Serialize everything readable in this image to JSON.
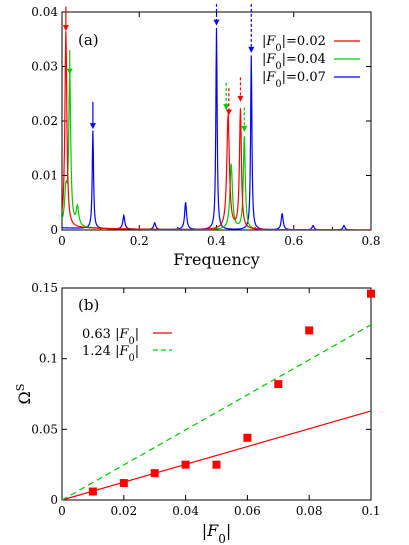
{
  "chart_data": [
    {
      "type": "line",
      "panel_label": "(a)",
      "title": "",
      "xlabel": "Frequency",
      "ylabel": "",
      "xlim": [
        0,
        0.8
      ],
      "ylim": [
        0,
        0.04
      ],
      "xticks": [
        "0",
        "0.2",
        "0.4",
        "0.6",
        "0.8"
      ],
      "yticks": [
        "0",
        "0.01",
        "0.02",
        "0.03",
        "0.04"
      ],
      "grid": false,
      "legend_position": "top-right",
      "legend": [
        {
          "prefix": "|",
          "var": "F",
          "sub": "0",
          "suffix": "|=0.02"
        },
        {
          "prefix": "|",
          "var": "F",
          "sub": "0",
          "suffix": "|=0.04"
        },
        {
          "prefix": "|",
          "var": "F",
          "sub": "0",
          "suffix": "|=0.07"
        }
      ],
      "series": [
        {
          "color": "#ff0000",
          "peaks": [
            [
              0.01,
              0.036,
              0.003
            ],
            [
              0.43,
              0.021,
              0.004
            ],
            [
              0.462,
              0.022,
              0.003
            ]
          ],
          "baseline": 0.0005
        },
        {
          "color": "#00cc00",
          "peaks": [
            [
              0.02,
              0.028,
              0.003
            ],
            [
              0.04,
              0.0035,
              0.004
            ],
            [
              0.438,
              0.012,
              0.004
            ],
            [
              0.472,
              0.017,
              0.003
            ],
            [
              0.01,
              0.006,
              0.004
            ]
          ],
          "baseline": 0.0005
        },
        {
          "color": "#0000ff",
          "peaks": [
            [
              0.08,
              0.018,
              0.002
            ],
            [
              0.16,
              0.0025,
              0.003
            ],
            [
              0.24,
              0.0012,
              0.003
            ],
            [
              0.32,
              0.005,
              0.003
            ],
            [
              0.4,
              0.037,
              0.002
            ],
            [
              0.49,
              0.032,
              0.002
            ],
            [
              0.57,
              0.003,
              0.003
            ],
            [
              0.65,
              0.0008,
              0.003
            ],
            [
              0.73,
              0.0008,
              0.003
            ]
          ],
          "baseline": 0.0004
        }
      ],
      "arrows": [
        {
          "x": 0.01,
          "y_top": 0.041,
          "y_tip": 0.0365,
          "color": "#ff0000",
          "dashed": false
        },
        {
          "x": 0.02,
          "y_top": 0.033,
          "y_tip": 0.0285,
          "color": "#00cc00",
          "dashed": false
        },
        {
          "x": 0.08,
          "y_top": 0.0235,
          "y_tip": 0.0185,
          "color": "#0000ff",
          "dashed": false
        },
        {
          "x": 0.4,
          "y_top": 0.0415,
          "y_tip": 0.0375,
          "color": "#0000ff",
          "dashed": true
        },
        {
          "x": 0.425,
          "y_top": 0.027,
          "y_tip": 0.022,
          "color": "#00cc00",
          "dashed": true
        },
        {
          "x": 0.432,
          "y_top": 0.026,
          "y_tip": 0.021,
          "color": "#ff0000",
          "dashed": true
        },
        {
          "x": 0.462,
          "y_top": 0.028,
          "y_tip": 0.0235,
          "color": "#ff0000",
          "dashed": true
        },
        {
          "x": 0.472,
          "y_top": 0.0225,
          "y_tip": 0.018,
          "color": "#00cc00",
          "dashed": true
        },
        {
          "x": 0.49,
          "y_top": 0.0415,
          "y_tip": 0.0325,
          "color": "#0000ff",
          "dashed": true
        }
      ]
    },
    {
      "type": "scatter",
      "panel_label": "(b)",
      "title": "",
      "xlabel": {
        "prefix": "|",
        "var": "F",
        "sub": "0",
        "suffix": "|"
      },
      "ylabel": {
        "base": "Ω",
        "sup": "S"
      },
      "xlim": [
        0,
        0.1
      ],
      "ylim": [
        0,
        0.15
      ],
      "xticks": [
        "0",
        "0.02",
        "0.04",
        "0.06",
        "0.08",
        "0.1"
      ],
      "yticks": [
        "0",
        "0.05",
        "0.1",
        "0.15"
      ],
      "grid": false,
      "legend_position": "top-left",
      "legend": [
        {
          "prefix": "0.63 |",
          "var": "F",
          "sub": "0",
          "suffix": "|"
        },
        {
          "prefix": "1.24 |",
          "var": "F",
          "sub": "0",
          "suffix": "|"
        }
      ],
      "fits": [
        {
          "slope": 0.63,
          "color": "#ff0000",
          "dashed": false
        },
        {
          "slope": 1.24,
          "color": "#00cc00",
          "dashed": true
        }
      ],
      "points": {
        "color": "#ff0000",
        "x": [
          0.01,
          0.02,
          0.03,
          0.04,
          0.05,
          0.06,
          0.07,
          0.08,
          0.1
        ],
        "y": [
          0.006,
          0.012,
          0.019,
          0.025,
          0.025,
          0.044,
          0.082,
          0.12,
          0.146
        ]
      }
    }
  ]
}
